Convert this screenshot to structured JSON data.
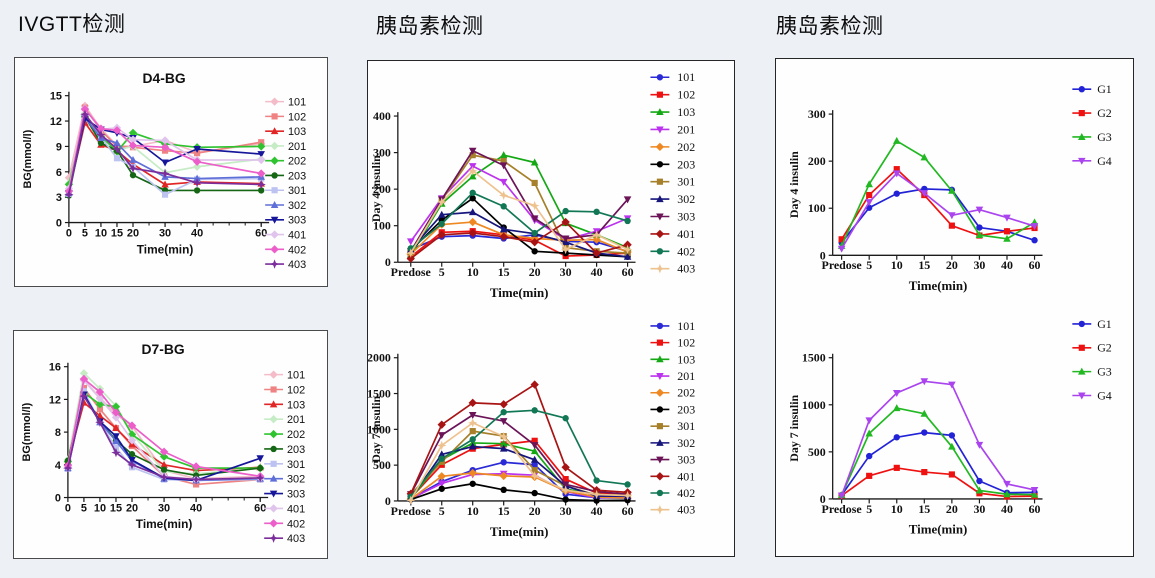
{
  "page": {
    "background": "#edf0f5",
    "sections": [
      {
        "title": "IVGTT检测"
      },
      {
        "title": "胰岛素检测"
      },
      {
        "title": "胰岛素检测"
      }
    ]
  },
  "chart_data": [
    {
      "id": "d4-bg",
      "type": "line",
      "title": "D4-BG",
      "xlabel": "Time(min)",
      "ylabel": "BG(mmol/l)",
      "x_type": "linear",
      "x": [
        0,
        5,
        10,
        15,
        20,
        30,
        40,
        60
      ],
      "xticklabels": [
        "0",
        "5",
        "10",
        "15",
        "20",
        "30",
        "40",
        "60"
      ],
      "ylim": [
        0,
        15
      ],
      "yticks": [
        0,
        3,
        6,
        9,
        12,
        15
      ],
      "grid": false,
      "legend_position": "right",
      "series": [
        {
          "name": "101",
          "color": "#f4bcc8",
          "marker": "diamond",
          "values": [
            5.3,
            13.8,
            11.1,
            9.1,
            9.0,
            9.7,
            8.3,
            9.3
          ]
        },
        {
          "name": "102",
          "color": "#ef8282",
          "marker": "square",
          "values": [
            3.7,
            13.6,
            10.9,
            9.0,
            8.9,
            8.5,
            8.2,
            9.5
          ]
        },
        {
          "name": "103",
          "color": "#e12626",
          "marker": "triangle-up",
          "values": [
            3.6,
            11.8,
            9.2,
            8.5,
            6.9,
            4.5,
            4.8,
            4.6
          ]
        },
        {
          "name": "201",
          "color": "#c6ecc6",
          "marker": "diamond",
          "values": [
            4.6,
            12.9,
            10.3,
            8.6,
            9.0,
            5.9,
            6.6,
            7.5
          ]
        },
        {
          "name": "202",
          "color": "#2fc42f",
          "marker": "diamond",
          "values": [
            4.5,
            12.5,
            10.2,
            8.4,
            10.6,
            9.3,
            8.9,
            9.0
          ]
        },
        {
          "name": "203",
          "color": "#156615",
          "marker": "circle",
          "values": [
            3.2,
            12.5,
            9.4,
            8.5,
            5.6,
            3.8,
            3.8,
            3.8
          ]
        },
        {
          "name": "301",
          "color": "#bcc3f0",
          "marker": "square",
          "values": [
            3.4,
            12.4,
            10.1,
            7.6,
            6.6,
            3.3,
            5.1,
            5.2
          ]
        },
        {
          "name": "302",
          "color": "#5f6fd8",
          "marker": "triangle-up",
          "values": [
            3.5,
            12.4,
            10.0,
            9.4,
            7.4,
            5.4,
            5.2,
            5.4
          ]
        },
        {
          "name": "303",
          "color": "#16169a",
          "marker": "triangle-down",
          "values": [
            3.5,
            12.3,
            11.0,
            10.6,
            10.0,
            7.1,
            8.7,
            8.1
          ]
        },
        {
          "name": "401",
          "color": "#e0c4ec",
          "marker": "diamond",
          "values": [
            4.0,
            13.5,
            11.0,
            11.2,
            9.8,
            9.7,
            7.4,
            7.4
          ]
        },
        {
          "name": "402",
          "color": "#ec5ec9",
          "marker": "diamond",
          "values": [
            3.7,
            13.4,
            11.1,
            10.9,
            9.1,
            8.9,
            7.2,
            5.8
          ]
        },
        {
          "name": "403",
          "color": "#7b2d9b",
          "marker": "star",
          "values": [
            3.3,
            12.8,
            10.4,
            8.7,
            6.4,
            5.8,
            4.7,
            4.5
          ]
        }
      ]
    },
    {
      "id": "d7-bg",
      "type": "line",
      "title": "D7-BG",
      "xlabel": "Time(min)",
      "ylabel": "BG(mmol/l)",
      "x_type": "linear",
      "x": [
        0,
        5,
        10,
        15,
        20,
        30,
        40,
        60
      ],
      "xticklabels": [
        "0",
        "5",
        "10",
        "15",
        "20",
        "30",
        "40",
        "60"
      ],
      "ylim": [
        0,
        16
      ],
      "yticks": [
        0,
        4,
        8,
        12,
        16
      ],
      "grid": false,
      "legend_position": "right",
      "series": [
        {
          "name": "101",
          "color": "#f4bcc8",
          "marker": "diamond",
          "values": [
            4.4,
            14.4,
            12.2,
            10.2,
            8.7,
            3.3,
            2.3,
            2.6
          ]
        },
        {
          "name": "102",
          "color": "#ef8282",
          "marker": "square",
          "values": [
            4.2,
            13.4,
            10.8,
            8.5,
            6.3,
            2.6,
            1.6,
            2.2
          ]
        },
        {
          "name": "103",
          "color": "#e12626",
          "marker": "triangle-up",
          "values": [
            4.3,
            11.6,
            10.0,
            8.5,
            6.5,
            4.0,
            3.3,
            3.7
          ]
        },
        {
          "name": "201",
          "color": "#c6ecc6",
          "marker": "diamond",
          "values": [
            4.6,
            15.2,
            13.3,
            11.2,
            7.8,
            3.2,
            2.9,
            3.6
          ]
        },
        {
          "name": "202",
          "color": "#2fc42f",
          "marker": "diamond",
          "values": [
            4.4,
            12.8,
            11.4,
            11.1,
            7.7,
            5.0,
            3.6,
            3.6
          ]
        },
        {
          "name": "203",
          "color": "#156615",
          "marker": "circle",
          "values": [
            4.5,
            12.8,
            9.3,
            7.0,
            5.3,
            3.4,
            2.7,
            3.6
          ]
        },
        {
          "name": "301",
          "color": "#bcc3f0",
          "marker": "square",
          "values": [
            3.5,
            13.0,
            9.2,
            6.1,
            3.7,
            2.2,
            2.1,
            2.2
          ]
        },
        {
          "name": "302",
          "color": "#5f6fd8",
          "marker": "triangle-up",
          "values": [
            3.6,
            12.5,
            9.2,
            6.9,
            4.5,
            2.3,
            2.1,
            2.3
          ]
        },
        {
          "name": "303",
          "color": "#16169a",
          "marker": "triangle-down",
          "values": [
            3.7,
            12.6,
            9.3,
            7.5,
            4.6,
            2.4,
            2.1,
            4.8
          ]
        },
        {
          "name": "401",
          "color": "#e0c4ec",
          "marker": "diamond",
          "values": [
            3.7,
            14.3,
            12.1,
            9.8,
            7.0,
            2.6,
            2.2,
            2.4
          ]
        },
        {
          "name": "402",
          "color": "#ec5ec9",
          "marker": "diamond",
          "values": [
            3.9,
            14.5,
            12.9,
            10.4,
            8.8,
            5.6,
            3.8,
            2.6
          ]
        },
        {
          "name": "403",
          "color": "#7b2d9b",
          "marker": "star",
          "values": [
            3.6,
            12.4,
            9.2,
            5.5,
            4.0,
            2.5,
            2.2,
            2.4
          ]
        }
      ]
    },
    {
      "id": "day4-insulin",
      "type": "line",
      "title": "",
      "xlabel": "Time(min)",
      "ylabel": "Day 4 insulin",
      "x_type": "category",
      "xticklabels": [
        "Predose",
        "5",
        "10",
        "15",
        "20",
        "30",
        "40",
        "60"
      ],
      "ylim": [
        0,
        400
      ],
      "yticks": [
        0,
        100,
        200,
        300,
        400
      ],
      "grid": false,
      "legend_position": "right",
      "series": [
        {
          "name": "101",
          "color": "#2a2ad6",
          "marker": "circle",
          "values": [
            35,
            70,
            73,
            65,
            75,
            57,
            55,
            30
          ]
        },
        {
          "name": "102",
          "color": "#ee1111",
          "marker": "square",
          "values": [
            15,
            82,
            85,
            75,
            60,
            17,
            20,
            25
          ]
        },
        {
          "name": "103",
          "color": "#15a815",
          "marker": "triangle-up",
          "values": [
            20,
            160,
            235,
            293,
            273,
            107,
            75,
            40
          ]
        },
        {
          "name": "201",
          "color": "#bb33ee",
          "marker": "triangle-down",
          "values": [
            57,
            175,
            263,
            220,
            115,
            62,
            85,
            120
          ]
        },
        {
          "name": "202",
          "color": "#ee8822",
          "marker": "diamond",
          "values": [
            22,
            103,
            110,
            75,
            65,
            60,
            62,
            28
          ]
        },
        {
          "name": "203",
          "color": "#000000",
          "marker": "circle",
          "values": [
            33,
            115,
            175,
            95,
            30,
            25,
            20,
            15
          ]
        },
        {
          "name": "301",
          "color": "#a6802a",
          "marker": "square",
          "values": [
            28,
            170,
            293,
            277,
            217,
            40,
            30,
            25
          ]
        },
        {
          "name": "302",
          "color": "#16167c",
          "marker": "triangle-up",
          "values": [
            35,
            130,
            137,
            90,
            78,
            55,
            25,
            15
          ]
        },
        {
          "name": "303",
          "color": "#6b1458",
          "marker": "triangle-down",
          "values": [
            30,
            172,
            305,
            265,
            120,
            65,
            75,
            172
          ]
        },
        {
          "name": "401",
          "color": "#a81414",
          "marker": "diamond",
          "values": [
            10,
            75,
            80,
            70,
            55,
            110,
            25,
            48
          ]
        },
        {
          "name": "402",
          "color": "#117755",
          "marker": "circle",
          "values": [
            38,
            105,
            190,
            153,
            80,
            140,
            138,
            113
          ]
        },
        {
          "name": "403",
          "color": "#eec28e",
          "marker": "star",
          "values": [
            25,
            165,
            250,
            183,
            155,
            35,
            75,
            35
          ]
        }
      ]
    },
    {
      "id": "day7-insulin",
      "type": "line",
      "title": "",
      "xlabel": "Time(min)",
      "ylabel": "Day 7 insulin",
      "x_type": "category",
      "xticklabels": [
        "Predose",
        "5",
        "10",
        "15",
        "20",
        "30",
        "40",
        "60"
      ],
      "ylim": [
        0,
        2000
      ],
      "yticks": [
        0,
        500,
        1000,
        1500,
        2000
      ],
      "grid": false,
      "legend_position": "right",
      "series": [
        {
          "name": "101",
          "color": "#2a2ad6",
          "marker": "circle",
          "values": [
            30,
            270,
            430,
            540,
            505,
            95,
            45,
            40
          ]
        },
        {
          "name": "102",
          "color": "#ee1111",
          "marker": "square",
          "values": [
            45,
            505,
            730,
            790,
            840,
            305,
            110,
            85
          ]
        },
        {
          "name": "103",
          "color": "#15a815",
          "marker": "triangle-up",
          "values": [
            35,
            575,
            810,
            800,
            695,
            165,
            90,
            75
          ]
        },
        {
          "name": "201",
          "color": "#bb33ee",
          "marker": "triangle-down",
          "values": [
            30,
            245,
            370,
            380,
            360,
            130,
            45,
            50
          ]
        },
        {
          "name": "202",
          "color": "#ee8822",
          "marker": "diamond",
          "values": [
            25,
            345,
            390,
            350,
            335,
            140,
            55,
            40
          ]
        },
        {
          "name": "203",
          "color": "#000000",
          "marker": "circle",
          "values": [
            20,
            170,
            240,
            155,
            110,
            20,
            5,
            10
          ]
        },
        {
          "name": "301",
          "color": "#a6802a",
          "marker": "square",
          "values": [
            90,
            545,
            975,
            905,
            430,
            210,
            80,
            90
          ]
        },
        {
          "name": "302",
          "color": "#16167c",
          "marker": "triangle-up",
          "values": [
            35,
            650,
            760,
            730,
            575,
            210,
            70,
            65
          ]
        },
        {
          "name": "303",
          "color": "#6b1458",
          "marker": "triangle-down",
          "values": [
            95,
            920,
            1200,
            1115,
            780,
            230,
            130,
            95
          ]
        },
        {
          "name": "401",
          "color": "#a81414",
          "marker": "diamond",
          "values": [
            100,
            1065,
            1370,
            1350,
            1625,
            470,
            150,
            120
          ]
        },
        {
          "name": "402",
          "color": "#117755",
          "marker": "circle",
          "values": [
            60,
            590,
            860,
            1240,
            1265,
            1155,
            285,
            230
          ]
        },
        {
          "name": "403",
          "color": "#eec28e",
          "marker": "star",
          "values": [
            10,
            775,
            1090,
            900,
            350,
            150,
            90,
            75
          ]
        }
      ]
    },
    {
      "id": "day4-insulin-groups",
      "type": "line",
      "title": "",
      "xlabel": "Time(min)",
      "ylabel": "Day 4 insulin",
      "x_type": "category",
      "xticklabels": [
        "Predose",
        "5",
        "10",
        "15",
        "20",
        "30",
        "40",
        "60"
      ],
      "ylim": [
        0,
        300
      ],
      "yticks": [
        0,
        100,
        200,
        300
      ],
      "grid": false,
      "legend_position": "right",
      "series": [
        {
          "name": "G1",
          "color": "#2222d6",
          "marker": "circle",
          "values": [
            27,
            101,
            131,
            141,
            139,
            59,
            51,
            32
          ]
        },
        {
          "name": "G2",
          "color": "#ee1111",
          "marker": "square",
          "values": [
            34,
            128,
            183,
            128,
            63,
            42,
            51,
            58
          ]
        },
        {
          "name": "G3",
          "color": "#22b822",
          "marker": "triangle-up",
          "values": [
            20,
            151,
            243,
            208,
            137,
            43,
            35,
            70
          ]
        },
        {
          "name": "G4",
          "color": "#aa44ee",
          "marker": "triangle-down",
          "values": [
            14,
            113,
            174,
            132,
            85,
            97,
            80,
            62
          ]
        }
      ]
    },
    {
      "id": "day7-insulin-groups",
      "type": "line",
      "title": "",
      "xlabel": "Time(min)",
      "ylabel": "Day 7 insulin",
      "x_type": "category",
      "xticklabels": [
        "Predose",
        "5",
        "10",
        "15",
        "20",
        "30",
        "40",
        "60"
      ],
      "ylim": [
        0,
        1500
      ],
      "yticks": [
        0,
        500,
        1000,
        1500
      ],
      "grid": false,
      "legend_position": "right",
      "series": [
        {
          "name": "G1",
          "color": "#2222d6",
          "marker": "circle",
          "values": [
            40,
            455,
            655,
            705,
            675,
            190,
            65,
            70
          ]
        },
        {
          "name": "G2",
          "color": "#ee1111",
          "marker": "square",
          "values": [
            35,
            245,
            330,
            285,
            260,
            60,
            25,
            30
          ]
        },
        {
          "name": "G3",
          "color": "#22b822",
          "marker": "triangle-up",
          "values": [
            40,
            695,
            965,
            905,
            555,
            90,
            50,
            45
          ]
        },
        {
          "name": "G4",
          "color": "#aa44ee",
          "marker": "triangle-down",
          "values": [
            35,
            835,
            1125,
            1250,
            1215,
            575,
            160,
            95
          ]
        }
      ]
    }
  ]
}
